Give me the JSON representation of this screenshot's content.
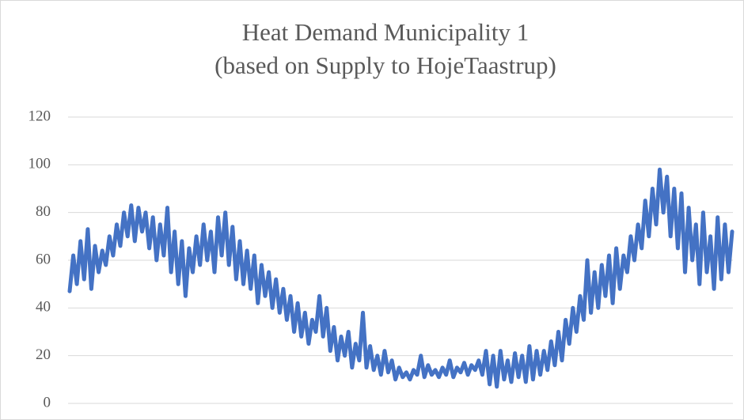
{
  "chart_data": {
    "type": "line",
    "title": [
      "Heat Demand Municipality 1",
      "(based on Supply to HojeTaastrup)"
    ],
    "series": [
      {
        "name": "Heat Demand",
        "color": "#4472c4",
        "values": [
          47,
          62,
          50,
          68,
          52,
          73,
          48,
          66,
          55,
          64,
          58,
          70,
          62,
          75,
          66,
          80,
          70,
          83,
          68,
          82,
          72,
          80,
          65,
          78,
          60,
          75,
          62,
          82,
          55,
          72,
          50,
          68,
          45,
          65,
          55,
          70,
          58,
          75,
          60,
          72,
          55,
          78,
          62,
          80,
          58,
          74,
          52,
          68,
          50,
          64,
          48,
          62,
          42,
          58,
          45,
          55,
          40,
          52,
          38,
          48,
          35,
          45,
          30,
          42,
          28,
          38,
          25,
          35,
          30,
          45,
          28,
          40,
          22,
          32,
          18,
          28,
          20,
          30,
          15,
          25,
          18,
          38,
          15,
          24,
          14,
          20,
          12,
          22,
          13,
          18,
          10,
          15,
          11,
          13,
          10,
          14,
          12,
          20,
          11,
          16,
          12,
          14,
          11,
          15,
          12,
          18,
          11,
          15,
          13,
          17,
          12,
          16,
          14,
          18,
          12,
          22,
          8,
          20,
          7,
          22,
          10,
          18,
          9,
          21,
          11,
          20,
          9,
          24,
          10,
          22,
          12,
          22,
          14,
          26,
          16,
          30,
          18,
          35,
          25,
          40,
          30,
          45,
          35,
          60,
          38,
          55,
          40,
          58,
          45,
          62,
          42,
          65,
          48,
          62,
          55,
          70,
          60,
          75,
          65,
          85,
          70,
          90,
          75,
          98,
          80,
          95,
          70,
          90,
          65,
          88,
          55,
          82,
          60,
          75,
          50,
          80,
          55,
          70,
          48,
          78,
          52,
          75,
          55,
          72
        ]
      }
    ],
    "ylim": [
      0,
      120
    ],
    "yticks": [
      0,
      20,
      40,
      60,
      80,
      100,
      120
    ],
    "grid": true
  }
}
